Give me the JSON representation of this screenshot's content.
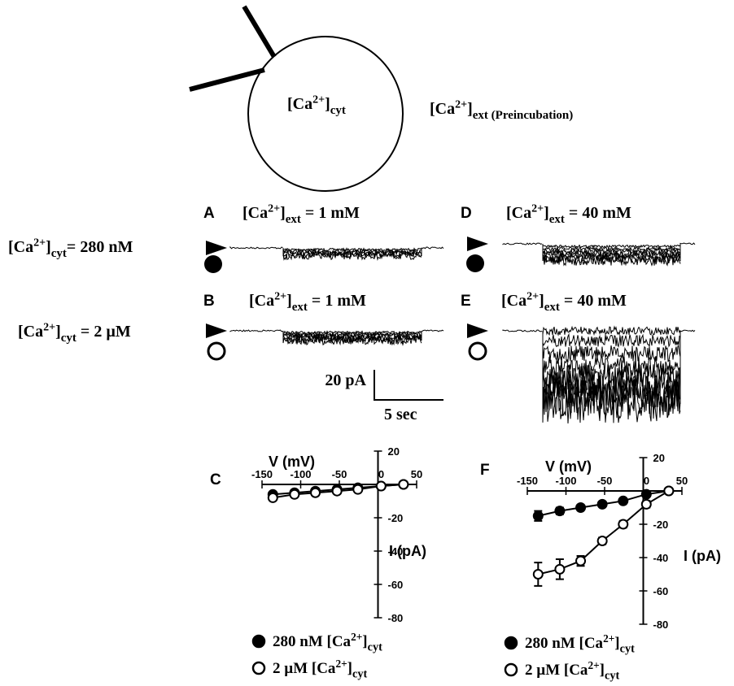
{
  "cell": {
    "inside": [
      "[Ca",
      "2+",
      "]",
      "cyt"
    ],
    "outside": [
      "[Ca",
      "2+",
      "]",
      "ext (Preincubation)"
    ]
  },
  "rows": [
    {
      "label": [
        "[Ca",
        "2+",
        "]",
        "cyt",
        "= 280 nM"
      ]
    },
    {
      "label": [
        "[Ca",
        "2+",
        "]",
        "cyt",
        " = 2 µM"
      ]
    }
  ],
  "panels": [
    {
      "letter": "A",
      "label": [
        "[Ca",
        "2+",
        "]",
        "ext",
        " = 1 mM"
      ]
    },
    {
      "letter": "B",
      "label": [
        "[Ca",
        "2+",
        "]",
        "ext",
        " = 1 mM"
      ]
    },
    {
      "letter": "D",
      "label": [
        "[Ca",
        "2+",
        "]",
        "ext",
        " = 40 mM"
      ]
    },
    {
      "letter": "E",
      "label": [
        "[Ca",
        "2+",
        "]",
        "ext",
        " = 40 mM"
      ]
    }
  ],
  "scale_bar": {
    "current": "20 pA",
    "time": "5 sec"
  },
  "chart_data": [
    {
      "type": "line",
      "label": "C",
      "xlabel": "V (mV)",
      "ylabel": "I (pA)",
      "x": [
        -136,
        -108,
        -81,
        -53,
        -26,
        4,
        33
      ],
      "xlim": [
        -150,
        50
      ],
      "xticks": [
        -150,
        -100,
        -50,
        0,
        50
      ],
      "ylim": [
        -80,
        20
      ],
      "yticks": [
        20,
        -20,
        -40,
        -60,
        -80
      ],
      "series": [
        {
          "name": [
            "280 nM [Ca",
            "2+",
            "]",
            "cyt"
          ],
          "color": "#000000",
          "marker_fill": "#000000",
          "values": [
            -6,
            -5,
            -4,
            -3,
            -2,
            -1,
            0
          ]
        },
        {
          "name": [
            "2 µM [Ca",
            "2+",
            "]",
            "cyt"
          ],
          "color": "#000000",
          "marker_fill": "#ffffff",
          "values": [
            -8,
            -6,
            -5,
            -4,
            -3,
            -1,
            0
          ]
        }
      ]
    },
    {
      "type": "line",
      "label": "F",
      "xlabel": "V (mV)",
      "ylabel": "I (pA)",
      "x": [
        -136,
        -108,
        -81,
        -53,
        -26,
        4,
        33
      ],
      "xlim": [
        -150,
        50
      ],
      "xticks": [
        -150,
        -100,
        -50,
        0,
        50
      ],
      "ylim": [
        -80,
        20
      ],
      "yticks": [
        20,
        -20,
        -40,
        -60,
        -80
      ],
      "series": [
        {
          "name": [
            "280 nM [Ca",
            "2+",
            "]",
            "cyt"
          ],
          "color": "#000000",
          "marker_fill": "#000000",
          "values": [
            -15,
            -12,
            -10,
            -8,
            -6,
            -2,
            0
          ],
          "errors": [
            3,
            2,
            1,
            1,
            1,
            1,
            1
          ]
        },
        {
          "name": [
            "2 µM [Ca",
            "2+",
            "]",
            "cyt"
          ],
          "color": "#000000",
          "marker_fill": "#ffffff",
          "values": [
            -50,
            -47,
            -42,
            -30,
            -20,
            -8,
            0
          ],
          "errors": [
            7,
            6,
            3,
            2,
            2,
            2,
            1
          ]
        }
      ]
    }
  ]
}
